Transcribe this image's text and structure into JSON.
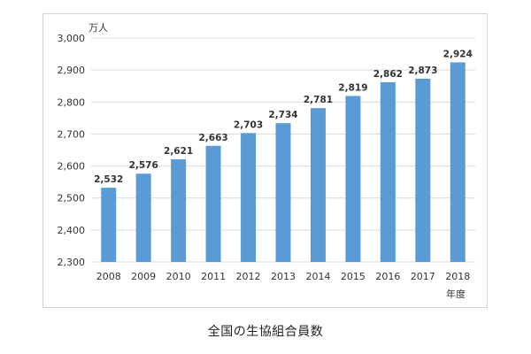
{
  "caption": "全国の生協組合員数",
  "chart_data": {
    "type": "bar",
    "title": "",
    "unit_label": "万人",
    "xlabel": "年度",
    "ylabel": "",
    "categories": [
      "2008",
      "2009",
      "2010",
      "2011",
      "2012",
      "2013",
      "2014",
      "2015",
      "2016",
      "2017",
      "2018"
    ],
    "values": [
      2532,
      2576,
      2621,
      2663,
      2703,
      2734,
      2781,
      2819,
      2862,
      2873,
      2924
    ],
    "data_labels": [
      "2,532",
      "2,576",
      "2,621",
      "2,663",
      "2,703",
      "2,734",
      "2,781",
      "2,819",
      "2,862",
      "2,873",
      "2,924"
    ],
    "ylim": [
      2300,
      3000
    ],
    "yticks": [
      2300,
      2400,
      2500,
      2600,
      2700,
      2800,
      2900,
      3000
    ],
    "ytick_labels": [
      "2,300",
      "2,400",
      "2,500",
      "2,600",
      "2,700",
      "2,800",
      "2,900",
      "3,000"
    ],
    "grid": true,
    "bar_color": "#5b9bd5",
    "grid_color": "#d9d9d9"
  }
}
